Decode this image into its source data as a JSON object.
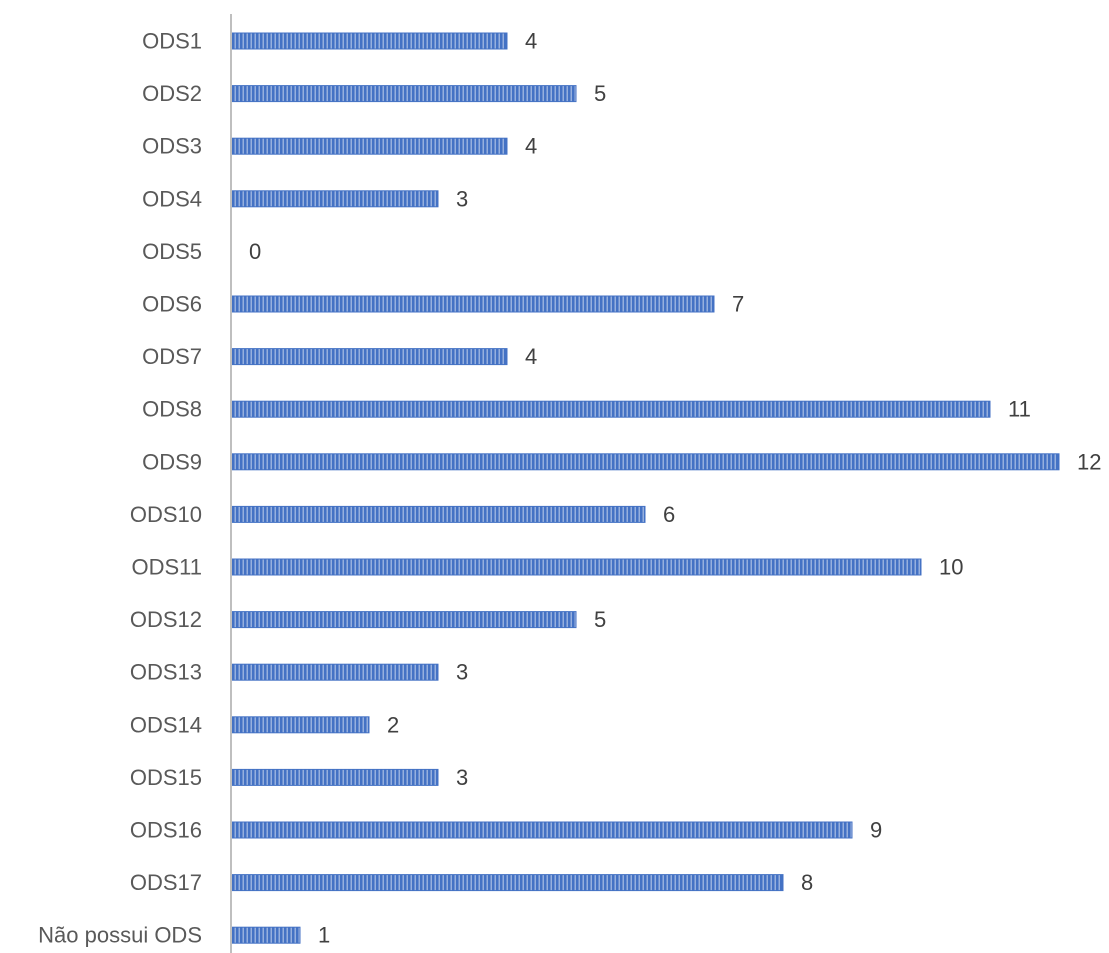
{
  "chart_data": {
    "type": "bar",
    "orientation": "horizontal",
    "categories": [
      "ODS1",
      "ODS2",
      "ODS3",
      "ODS4",
      "ODS5",
      "ODS6",
      "ODS7",
      "ODS8",
      "ODS9",
      "ODS10",
      "ODS11",
      "ODS12",
      "ODS13",
      "ODS14",
      "ODS15",
      "ODS16",
      "ODS17",
      "Não possui ODS"
    ],
    "values": [
      4,
      5,
      4,
      3,
      0,
      7,
      4,
      11,
      12,
      6,
      10,
      5,
      3,
      2,
      3,
      9,
      8,
      1
    ],
    "title": "",
    "xlabel": "",
    "ylabel": "",
    "xlim": [
      0,
      12
    ],
    "grid": false,
    "legend": "none",
    "data_labels": true,
    "colors": {
      "bar": "#4472C4",
      "bar_hatch": "#ffffff",
      "axis": "#BFBFBF",
      "category_text": "#595959",
      "value_text": "#404040"
    }
  }
}
